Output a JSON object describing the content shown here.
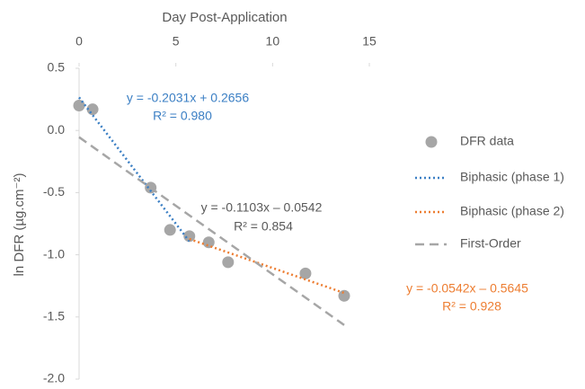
{
  "chart_data": {
    "type": "scatter",
    "xlabel": "Day Post-Application",
    "ylabel": "ln DFR (µg.cm⁻²)",
    "xlim": [
      0,
      15
    ],
    "xticks": [
      0,
      5,
      10,
      15
    ],
    "ylim": [
      -2,
      0.5
    ],
    "yticks": [
      {
        "value": -2,
        "label": "-2.0"
      },
      -1.5,
      {
        "value": -1,
        "label": "-1.0"
      },
      -0.5,
      {
        "value": 0,
        "label": "0.0"
      },
      0.5
    ],
    "legend": "right",
    "series": [
      {
        "name": "DFR data",
        "color": "#a6a6a6",
        "style": "markers",
        "x": [
          0,
          0.7,
          3.7,
          4.7,
          5.7,
          6.7,
          7.7,
          11.7,
          13.7
        ],
        "values": [
          0.2,
          0.17,
          -0.46,
          -0.8,
          -0.85,
          -0.9,
          -1.06,
          -1.15,
          -1.33
        ]
      },
      {
        "name": "Biphasic (phase 1)",
        "color": "#3b7fc4",
        "style": "dotted",
        "x": [
          0,
          5.7
        ],
        "values": [
          0.2656,
          -0.892
        ]
      },
      {
        "name": "Biphasic (phase 2)",
        "color": "#ed7d31",
        "style": "dotted",
        "x": [
          5.7,
          13.7
        ],
        "values": [
          -0.873,
          -1.307
        ]
      },
      {
        "name": "First-Order",
        "color": "#a6a6a6",
        "style": "dashed",
        "x": [
          0,
          13.7
        ],
        "values": [
          -0.0542,
          -1.565
        ]
      }
    ],
    "annotations": [
      {
        "text": "y = -0.2031x + 0.2656",
        "color": "#3b7fc4"
      },
      {
        "text": "R² = 0.980",
        "color": "#3b7fc4"
      },
      {
        "text": "y = -0.1103x – 0.0542",
        "color": "#595959"
      },
      {
        "text": "R² = 0.854",
        "color": "#595959"
      },
      {
        "text": "y = -0.0542x – 0.5645",
        "color": "#ed7d31"
      },
      {
        "text": "R² = 0.928",
        "color": "#ed7d31"
      }
    ]
  }
}
